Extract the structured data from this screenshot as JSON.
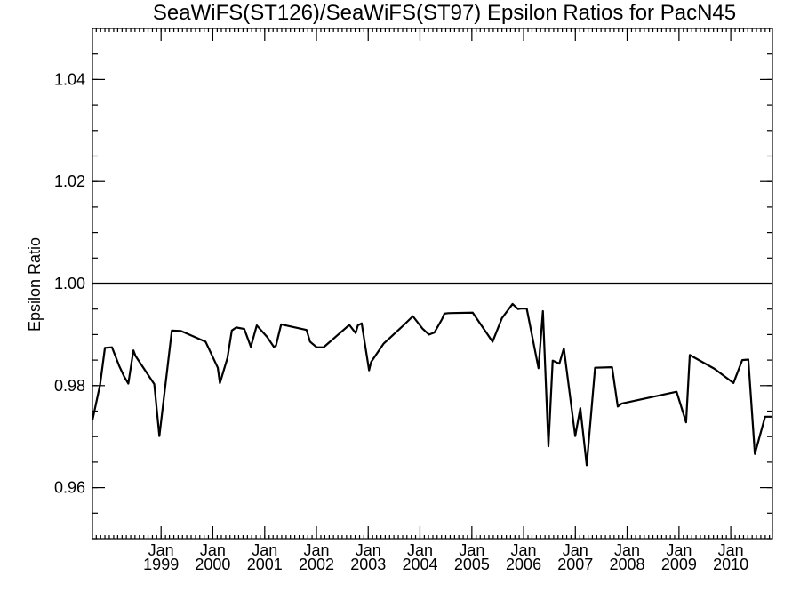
{
  "chart_data": {
    "type": "line",
    "title": "SeaWiFS(ST126)/SeaWiFS(ST97)  Epsilon Ratios for PacN45",
    "xlabel": "",
    "ylabel": "Epsilon Ratio",
    "ylim": [
      0.95,
      1.05
    ],
    "yticks": [
      0.96,
      0.98,
      1.0,
      1.02,
      1.04
    ],
    "ytick_labels": [
      "0.96",
      "0.98",
      "1.00",
      "1.02",
      "1.04"
    ],
    "xlim": [
      "1997-09-04",
      "2010-10-22"
    ],
    "xticks": [
      {
        "date": "1999-01-01",
        "top": "Jan",
        "bottom": "1999"
      },
      {
        "date": "2000-01-01",
        "top": "Jan",
        "bottom": "2000"
      },
      {
        "date": "2001-01-01",
        "top": "Jan",
        "bottom": "2001"
      },
      {
        "date": "2002-01-01",
        "top": "Jan",
        "bottom": "2002"
      },
      {
        "date": "2003-01-01",
        "top": "Jan",
        "bottom": "2003"
      },
      {
        "date": "2004-01-01",
        "top": "Jan",
        "bottom": "2004"
      },
      {
        "date": "2005-01-01",
        "top": "Jan",
        "bottom": "2005"
      },
      {
        "date": "2006-01-01",
        "top": "Jan",
        "bottom": "2006"
      },
      {
        "date": "2007-01-01",
        "top": "Jan",
        "bottom": "2007"
      },
      {
        "date": "2008-01-01",
        "top": "Jan",
        "bottom": "2008"
      },
      {
        "date": "2009-01-01",
        "top": "Jan",
        "bottom": "2009"
      },
      {
        "date": "2010-01-01",
        "top": "Jan",
        "bottom": "2010"
      }
    ],
    "reference_line": 1.0,
    "grid": false,
    "series": [
      {
        "x": [
          "1997-09-04",
          "1997-10-28",
          "1997-12-01",
          "1998-01-20",
          "1998-03-11",
          "1998-04-15",
          "1998-05-15",
          "1998-06-20",
          "1998-07-05",
          "1998-11-14",
          "1998-12-20",
          "1999-03-18",
          "1999-05-22",
          "1999-11-11",
          "2000-02-05",
          "2000-02-20",
          "2000-04-13",
          "2000-05-14",
          "2000-06-14",
          "2000-08-10",
          "2000-09-25",
          "2000-11-06",
          "2001-01-19",
          "2001-03-06",
          "2001-03-21",
          "2001-04-27",
          "2001-10-23",
          "2001-11-17",
          "2002-01-03",
          "2002-02-20",
          "2002-08-21",
          "2002-10-04",
          "2002-10-20",
          "2002-11-16",
          "2003-01-07",
          "2003-01-21",
          "2003-04-19",
          "2003-08-22",
          "2003-11-12",
          "2004-01-18",
          "2004-03-05",
          "2004-04-12",
          "2004-06-06",
          "2004-06-21",
          "2004-07-18",
          "2005-01-07",
          "2005-05-27",
          "2005-08-01",
          "2005-10-15",
          "2005-11-23",
          "2005-12-12",
          "2006-01-23",
          "2006-04-16",
          "2006-05-17",
          "2006-06-25",
          "2006-07-25",
          "2006-09-10",
          "2006-10-12",
          "2006-12-31",
          "2007-02-05",
          "2007-03-22",
          "2007-05-20",
          "2007-09-17",
          "2007-10-27",
          "2007-11-25",
          "2008-12-15",
          "2009-02-20",
          "2009-03-18",
          "2009-09-08",
          "2010-01-20",
          "2010-03-23",
          "2010-05-05",
          "2010-06-20",
          "2010-08-31",
          "2010-10-22"
        ],
        "values": [
          0.9732,
          0.9802,
          0.9874,
          0.9875,
          0.9839,
          0.9818,
          0.9804,
          0.9869,
          0.9858,
          0.9803,
          0.9701,
          0.9908,
          0.9907,
          0.9886,
          0.9835,
          0.9805,
          0.9854,
          0.9908,
          0.9914,
          0.9911,
          0.9876,
          0.9918,
          0.9895,
          0.9876,
          0.9878,
          0.992,
          0.9909,
          0.9886,
          0.9875,
          0.9875,
          0.9919,
          0.9903,
          0.9918,
          0.9922,
          0.983,
          0.9846,
          0.9882,
          0.9914,
          0.9936,
          0.9912,
          0.99,
          0.9904,
          0.9931,
          0.9941,
          0.9942,
          0.9943,
          0.9886,
          0.9932,
          0.996,
          0.995,
          0.9951,
          0.9951,
          0.9834,
          0.9946,
          0.9681,
          0.9849,
          0.9843,
          0.9873,
          0.9701,
          0.9756,
          0.9644,
          0.9835,
          0.9836,
          0.9759,
          0.9765,
          0.9788,
          0.9728,
          0.986,
          0.9833,
          0.9805,
          0.985,
          0.9851,
          0.9666,
          0.9739,
          0.9739
        ]
      }
    ]
  }
}
